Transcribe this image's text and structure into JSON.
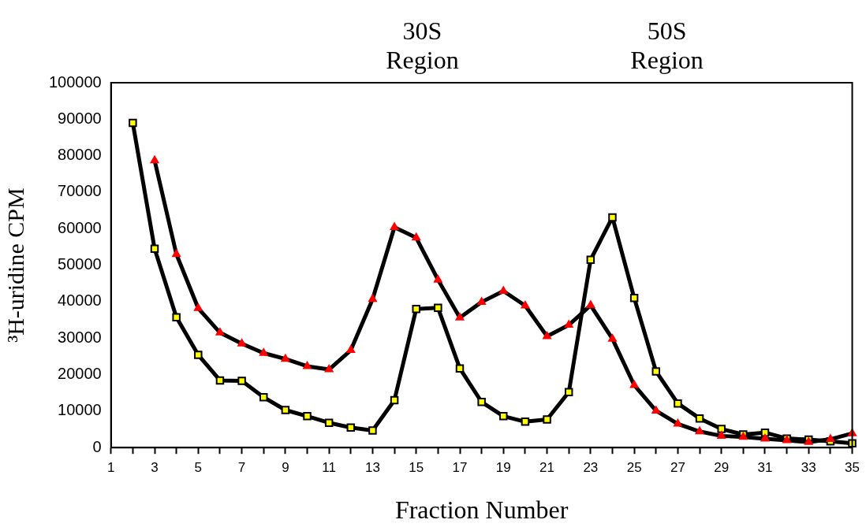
{
  "chart_data": {
    "type": "line",
    "xlabel": "Fraction Number",
    "ylabel": "³H-uridine CPM",
    "x": [
      2,
      3,
      4,
      5,
      6,
      7,
      8,
      9,
      10,
      11,
      12,
      13,
      14,
      15,
      16,
      17,
      18,
      19,
      20,
      21,
      22,
      23,
      24,
      25,
      26,
      27,
      28,
      29,
      30,
      31,
      32,
      33,
      34,
      35
    ],
    "xlim": [
      1,
      35
    ],
    "xticks": [
      1,
      {
        "value": 2,
        "label": null
      },
      3,
      {
        "value": 4,
        "label": null
      },
      5,
      {
        "value": 6,
        "label": null
      },
      7,
      {
        "value": 8,
        "label": null
      },
      9,
      {
        "value": 10,
        "label": null
      },
      11,
      {
        "value": 12,
        "label": null
      },
      13,
      {
        "value": 14,
        "label": null
      },
      15,
      {
        "value": 16,
        "label": null
      },
      17,
      {
        "value": 18,
        "label": null
      },
      19,
      {
        "value": 20,
        "label": null
      },
      21,
      {
        "value": 22,
        "label": null
      },
      23,
      {
        "value": 24,
        "label": null
      },
      25,
      {
        "value": 26,
        "label": null
      },
      27,
      {
        "value": 28,
        "label": null
      },
      29,
      {
        "value": 30,
        "label": null
      },
      31,
      {
        "value": 32,
        "label": null
      },
      33,
      {
        "value": 34,
        "label": null
      },
      35
    ],
    "series": [
      {
        "color": "#ffff00",
        "marker": "square",
        "values": [
          89000,
          54500,
          35700,
          25400,
          18400,
          18300,
          13800,
          10300,
          8600,
          6800,
          5500,
          4700,
          13000,
          38000,
          38300,
          21700,
          12500,
          8600,
          7100,
          7700,
          15200,
          51500,
          63100,
          41000,
          20900,
          12100,
          8000,
          5100,
          3600,
          4100,
          2500,
          2200,
          1700,
          1200
        ]
      },
      {
        "color": "#ff0000",
        "marker": "triangle",
        "values": [
          null,
          78700,
          53000,
          38200,
          31500,
          28500,
          25900,
          24300,
          22300,
          21400,
          26700,
          40700,
          60400,
          57500,
          46000,
          35600,
          39900,
          42900,
          38900,
          30500,
          33600,
          39000,
          29800,
          17100,
          10100,
          6500,
          4400,
          3200,
          2900,
          2400,
          2000,
          1500,
          2300,
          3900
        ]
      }
    ],
    "ylim": [
      0,
      100000
    ],
    "yticks": [
      0,
      10000,
      20000,
      30000,
      40000,
      50000,
      60000,
      70000,
      80000,
      90000,
      100000
    ],
    "grid": false,
    "legend": false,
    "annotations": [
      "30S Region",
      "50S Region"
    ]
  }
}
